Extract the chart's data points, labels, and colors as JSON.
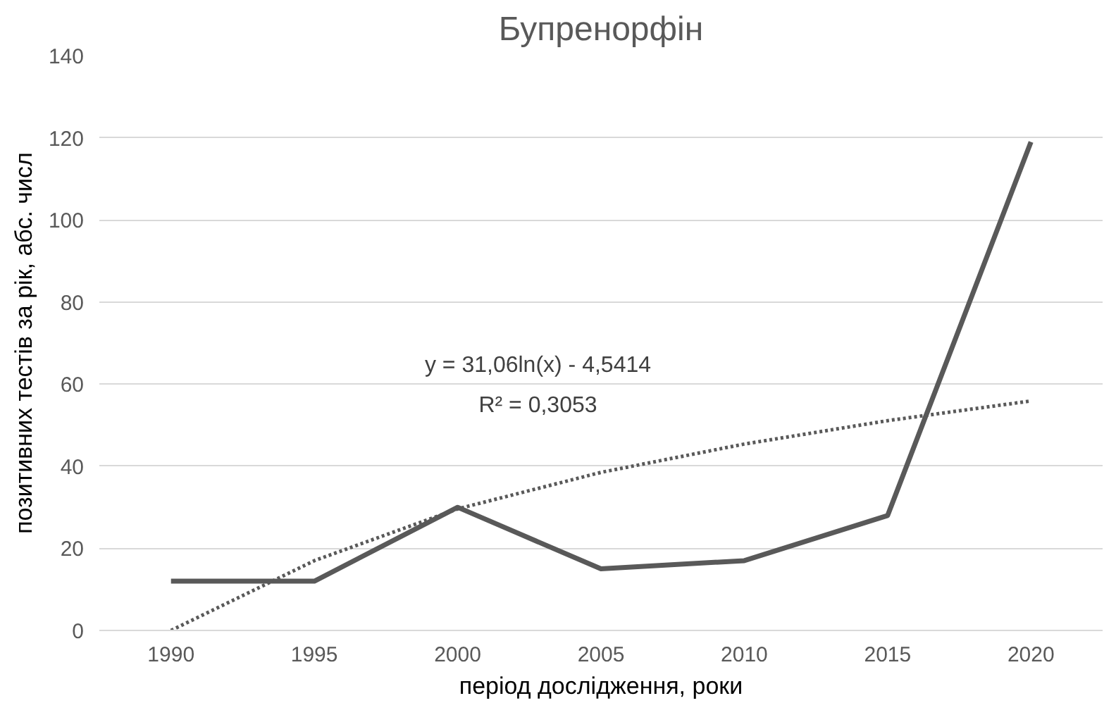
{
  "chart_data": {
    "type": "line",
    "title": "Бупренорфін",
    "xlabel": "період дослідження, роки",
    "ylabel": "позитивних тестів за рік, абс. числ",
    "xlim": [
      1987.5,
      2022.5
    ],
    "xticks": [
      1990,
      1995,
      2000,
      2005,
      2010,
      2015,
      2020
    ],
    "ylim": [
      0,
      140
    ],
    "yticks": [
      0,
      20,
      40,
      60,
      80,
      100,
      120,
      140
    ],
    "grid": "y",
    "series": [
      {
        "color": "#595959",
        "x": [
          1990,
          1995,
          2000,
          2005,
          2010,
          2015,
          2020
        ],
        "values": [
          12,
          12,
          30,
          15,
          17,
          28,
          119
        ],
        "line_style": "solid"
      },
      {
        "type": "line",
        "color": "#595959",
        "x": [
          1990,
          1995,
          2000,
          2005,
          2010,
          2015,
          2020
        ],
        "values": [
          0,
          17,
          29.6,
          38.5,
          45.4,
          51.1,
          55.9
        ],
        "line_style": "dotted"
      }
    ],
    "annotations": [
      "y = 31,06ln(x) - 4,5414",
      "R² = 0,3053"
    ]
  }
}
